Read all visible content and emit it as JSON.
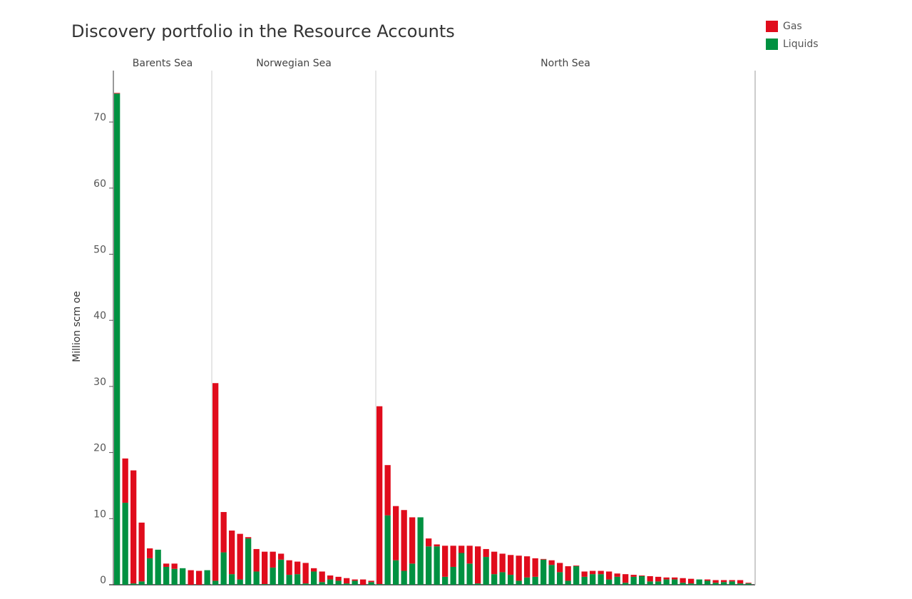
{
  "chart_data": {
    "type": "bar",
    "stacked": true,
    "title": "Discovery portfolio in the Resource Accounts",
    "ylabel": "Million scm oe",
    "ylim": [
      0,
      78
    ],
    "yticks": [
      0,
      10,
      20,
      30,
      40,
      50,
      60,
      70
    ],
    "grid": false,
    "legend_position": "top-right",
    "colors": {
      "Gas": "#e00c1c",
      "Liquids": "#009141"
    },
    "series_names": [
      "Gas",
      "Liquids"
    ],
    "panels": [
      {
        "name": "Barents Sea",
        "liquids": [
          74.3,
          12.4,
          0.2,
          0.5,
          4.0,
          5.3,
          2.7,
          2.4,
          2.5,
          0,
          0,
          2.2
        ],
        "gas": [
          0.1,
          6.7,
          17.1,
          8.9,
          1.5,
          0,
          0.5,
          0.8,
          0,
          2.2,
          2.1,
          0
        ]
      },
      {
        "name": "Norwegian Sea",
        "liquids": [
          0.6,
          4.9,
          1.6,
          0.8,
          7.0,
          2.0,
          0.1,
          2.6,
          3.8,
          1.5,
          1.6,
          0.2,
          2.0,
          0.4,
          0.8,
          0.6,
          0.2,
          0.6,
          0,
          0.4
        ],
        "gas": [
          29.9,
          6.1,
          6.6,
          6.9,
          0.2,
          3.4,
          4.9,
          2.4,
          0.9,
          2.2,
          1.9,
          3.1,
          0.5,
          1.6,
          0.6,
          0.6,
          0.8,
          0.2,
          0.8,
          0.2
        ]
      },
      {
        "name": "North Sea",
        "liquids": [
          0.1,
          10.5,
          3.7,
          2.1,
          3.2,
          10.2,
          5.8,
          5.8,
          1.2,
          2.7,
          4.8,
          3.2,
          0.2,
          4.2,
          1.6,
          1.9,
          1.5,
          0.6,
          1.1,
          1.2,
          3.8,
          3.0,
          1.9,
          0.6,
          2.8,
          1.2,
          1.6,
          1.6,
          0.8,
          1.2,
          0.3,
          1.2,
          1.3,
          0.5,
          0.5,
          0.8,
          0.8,
          0.3,
          0.2,
          0.8,
          0.6,
          0.3,
          0.4,
          0.5,
          0.2,
          0.2
        ],
        "gas": [
          26.9,
          7.6,
          8.2,
          9.2,
          7.0,
          0,
          1.2,
          0.3,
          4.7,
          3.2,
          1.1,
          2.7,
          5.6,
          1.2,
          3.4,
          2.8,
          3.0,
          3.8,
          3.2,
          2.8,
          0.1,
          0.7,
          1.4,
          2.2,
          0.1,
          0.8,
          0.5,
          0.5,
          1.2,
          0.5,
          1.3,
          0.3,
          0.1,
          0.8,
          0.7,
          0.3,
          0.3,
          0.7,
          0.7,
          0,
          0.2,
          0.4,
          0.3,
          0.2,
          0.5,
          0.1
        ]
      }
    ]
  }
}
